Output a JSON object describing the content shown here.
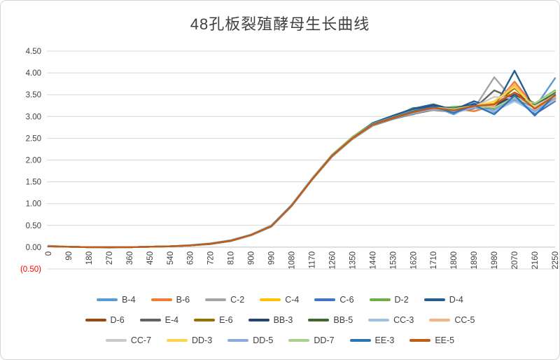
{
  "title": "48孔板裂殖酵母生长曲线",
  "axis": {
    "y_tick_labels": [
      "4.50",
      "4.00",
      "3.50",
      "3.00",
      "2.50",
      "2.00",
      "1.50",
      "1.00",
      "0.50",
      "0.00",
      "(0.50)"
    ],
    "y_tick_values": [
      4.5,
      4.0,
      3.5,
      3.0,
      2.5,
      2.0,
      1.5,
      1.0,
      0.5,
      0.0,
      -0.5
    ],
    "negative_tick_color": "#FF0000",
    "tick_label_color": "#404040",
    "gridline_color": "#D9D9D9",
    "zero_axis_color": "#BFBFBF"
  },
  "chart_data": {
    "type": "line",
    "title": "48孔板裂殖酵母生长曲线",
    "xlabel": "",
    "ylabel": "",
    "ylim": [
      -0.5,
      4.5
    ],
    "grid": true,
    "legend_position": "bottom",
    "x": [
      0,
      90,
      180,
      270,
      360,
      450,
      540,
      630,
      720,
      810,
      900,
      990,
      1080,
      1170,
      1260,
      1350,
      1440,
      1530,
      1620,
      1710,
      1800,
      1890,
      1980,
      2070,
      2160,
      2250
    ],
    "x_tick_labels": [
      "0",
      "90",
      "180",
      "270",
      "360",
      "450",
      "540",
      "630",
      "720",
      "810",
      "900",
      "990",
      "1080",
      "1170",
      "1260",
      "1350",
      "1440",
      "1530",
      "1620",
      "1710",
      "1800",
      "1890",
      "1980",
      "2070",
      "2160",
      "2250"
    ],
    "series": [
      {
        "name": "B-4",
        "color": "#5B9BD5",
        "values": [
          0.03,
          0.01,
          0.0,
          0.0,
          0.0,
          0.01,
          0.02,
          0.04,
          0.08,
          0.16,
          0.29,
          0.5,
          0.97,
          1.57,
          2.12,
          2.52,
          2.82,
          2.98,
          3.05,
          3.22,
          3.05,
          3.28,
          3.1,
          3.42,
          3.2,
          3.88
        ]
      },
      {
        "name": "B-6",
        "color": "#ED7D31",
        "values": [
          0.02,
          0.01,
          0.0,
          0.0,
          0.0,
          0.01,
          0.02,
          0.04,
          0.08,
          0.15,
          0.28,
          0.48,
          0.95,
          1.55,
          2.1,
          2.5,
          2.83,
          2.96,
          3.12,
          3.15,
          3.18,
          3.12,
          3.25,
          3.8,
          3.22,
          3.42
        ]
      },
      {
        "name": "C-2",
        "color": "#A5A5A5",
        "values": [
          0.02,
          0.01,
          0.0,
          0.0,
          0.0,
          0.01,
          0.02,
          0.04,
          0.08,
          0.15,
          0.27,
          0.47,
          0.94,
          1.54,
          2.09,
          2.49,
          2.81,
          2.97,
          3.1,
          3.2,
          3.15,
          3.18,
          3.9,
          3.35,
          3.28,
          3.5
        ]
      },
      {
        "name": "C-4",
        "color": "#FFC000",
        "values": [
          0.02,
          0.01,
          0.0,
          0.0,
          0.0,
          0.01,
          0.02,
          0.04,
          0.08,
          0.15,
          0.28,
          0.48,
          0.96,
          1.56,
          2.11,
          2.51,
          2.8,
          2.95,
          3.08,
          3.16,
          3.2,
          3.22,
          3.3,
          3.7,
          3.18,
          3.4
        ]
      },
      {
        "name": "C-6",
        "color": "#4472C4",
        "values": [
          0.02,
          0.01,
          0.0,
          0.0,
          0.0,
          0.01,
          0.02,
          0.04,
          0.08,
          0.15,
          0.28,
          0.49,
          0.96,
          1.55,
          2.1,
          2.52,
          2.84,
          3.0,
          3.15,
          3.25,
          3.1,
          3.3,
          3.15,
          3.45,
          3.05,
          3.35
        ]
      },
      {
        "name": "D-2",
        "color": "#70AD47",
        "values": [
          0.02,
          0.01,
          0.0,
          0.0,
          0.0,
          0.01,
          0.02,
          0.04,
          0.08,
          0.15,
          0.28,
          0.48,
          0.95,
          1.56,
          2.12,
          2.53,
          2.85,
          2.98,
          3.2,
          3.18,
          3.22,
          3.25,
          3.2,
          3.4,
          3.3,
          3.6
        ]
      },
      {
        "name": "D-4",
        "color": "#255E91",
        "values": [
          0.02,
          0.01,
          0.0,
          0.0,
          0.0,
          0.01,
          0.02,
          0.04,
          0.08,
          0.15,
          0.28,
          0.48,
          0.95,
          1.55,
          2.1,
          2.5,
          2.85,
          3.02,
          3.18,
          3.28,
          3.15,
          3.35,
          3.2,
          4.05,
          3.15,
          3.4
        ]
      },
      {
        "name": "D-6",
        "color": "#9E480E",
        "values": [
          0.02,
          0.01,
          0.0,
          0.0,
          0.0,
          0.01,
          0.02,
          0.04,
          0.08,
          0.15,
          0.28,
          0.48,
          0.95,
          1.55,
          2.1,
          2.5,
          2.8,
          2.95,
          3.1,
          3.2,
          3.15,
          3.22,
          3.25,
          3.55,
          3.3,
          3.45
        ]
      },
      {
        "name": "E-4",
        "color": "#636363",
        "values": [
          0.02,
          0.01,
          0.0,
          -0.01,
          0.0,
          0.01,
          0.02,
          0.04,
          0.07,
          0.14,
          0.27,
          0.47,
          0.94,
          1.54,
          2.08,
          2.48,
          2.79,
          2.94,
          3.06,
          3.15,
          3.1,
          3.18,
          3.6,
          3.4,
          3.25,
          3.42
        ]
      },
      {
        "name": "E-6",
        "color": "#997300",
        "values": [
          0.02,
          0.01,
          0.0,
          0.0,
          0.0,
          0.01,
          0.02,
          0.04,
          0.08,
          0.15,
          0.28,
          0.48,
          0.95,
          1.55,
          2.1,
          2.5,
          2.81,
          2.96,
          3.09,
          3.17,
          3.13,
          3.21,
          3.28,
          3.65,
          3.22,
          3.44
        ]
      },
      {
        "name": "BB-3",
        "color": "#264478",
        "values": [
          0.02,
          0.01,
          0.0,
          0.0,
          0.0,
          0.01,
          0.02,
          0.04,
          0.08,
          0.15,
          0.28,
          0.48,
          0.96,
          1.56,
          2.11,
          2.51,
          2.83,
          2.99,
          3.14,
          3.24,
          3.18,
          3.28,
          3.22,
          3.5,
          3.28,
          3.46
        ]
      },
      {
        "name": "BB-5",
        "color": "#43682B",
        "values": [
          0.02,
          0.01,
          0.0,
          0.0,
          0.0,
          0.01,
          0.02,
          0.04,
          0.08,
          0.15,
          0.28,
          0.48,
          0.95,
          1.55,
          2.1,
          2.5,
          2.82,
          2.97,
          3.12,
          3.2,
          3.16,
          3.24,
          3.18,
          3.38,
          3.26,
          3.55
        ]
      },
      {
        "name": "CC-3",
        "color": "#9CC2E5",
        "values": [
          0.03,
          0.01,
          0.0,
          0.0,
          0.0,
          0.01,
          0.02,
          0.05,
          0.09,
          0.16,
          0.29,
          0.49,
          0.96,
          1.56,
          2.11,
          2.51,
          2.81,
          2.96,
          3.07,
          3.18,
          3.08,
          3.2,
          3.12,
          3.35,
          3.1,
          3.38
        ]
      },
      {
        "name": "CC-5",
        "color": "#F4B183",
        "values": [
          0.02,
          0.01,
          0.0,
          0.0,
          0.0,
          0.01,
          0.02,
          0.04,
          0.08,
          0.15,
          0.28,
          0.48,
          0.95,
          1.55,
          2.1,
          2.5,
          2.8,
          2.95,
          3.08,
          3.16,
          3.12,
          3.2,
          3.24,
          3.75,
          3.15,
          3.4
        ]
      },
      {
        "name": "CC-7",
        "color": "#C9C9C9",
        "values": [
          0.02,
          0.01,
          0.0,
          0.0,
          0.0,
          0.01,
          0.02,
          0.04,
          0.08,
          0.15,
          0.27,
          0.47,
          0.94,
          1.54,
          2.09,
          2.49,
          2.8,
          2.96,
          3.1,
          3.19,
          3.14,
          3.22,
          3.45,
          3.42,
          3.24,
          3.48
        ]
      },
      {
        "name": "DD-3",
        "color": "#FFD34D",
        "values": [
          0.02,
          0.01,
          0.0,
          0.0,
          0.0,
          0.01,
          0.02,
          0.04,
          0.08,
          0.15,
          0.28,
          0.48,
          0.95,
          1.55,
          2.1,
          2.5,
          2.81,
          2.97,
          3.11,
          3.2,
          3.15,
          3.23,
          3.35,
          3.68,
          3.2,
          3.45
        ]
      },
      {
        "name": "DD-5",
        "color": "#8EAADB",
        "values": [
          0.02,
          0.01,
          0.0,
          0.0,
          0.0,
          0.01,
          0.02,
          0.04,
          0.08,
          0.15,
          0.28,
          0.48,
          0.95,
          1.55,
          2.1,
          2.5,
          2.8,
          2.95,
          3.08,
          3.17,
          3.12,
          3.2,
          3.15,
          3.4,
          3.12,
          3.42
        ]
      },
      {
        "name": "DD-7",
        "color": "#A9D18E",
        "values": [
          0.02,
          0.01,
          0.0,
          0.0,
          0.0,
          0.01,
          0.02,
          0.04,
          0.08,
          0.15,
          0.28,
          0.48,
          0.95,
          1.56,
          2.11,
          2.52,
          2.83,
          2.98,
          3.13,
          3.21,
          3.17,
          3.25,
          3.2,
          3.44,
          3.3,
          3.58
        ]
      },
      {
        "name": "EE-3",
        "color": "#2E75B6",
        "values": [
          0.02,
          0.01,
          0.0,
          0.0,
          0.0,
          0.01,
          0.02,
          0.04,
          0.08,
          0.15,
          0.28,
          0.48,
          0.95,
          1.55,
          2.1,
          2.5,
          2.82,
          2.97,
          3.12,
          3.22,
          3.08,
          3.26,
          3.05,
          3.48,
          3.02,
          3.5
        ]
      },
      {
        "name": "EE-5",
        "color": "#C55A11",
        "values": [
          0.02,
          0.01,
          0.0,
          0.0,
          0.0,
          0.01,
          0.02,
          0.04,
          0.08,
          0.15,
          0.28,
          0.48,
          0.95,
          1.55,
          2.1,
          2.5,
          2.81,
          2.96,
          3.1,
          3.2,
          3.14,
          3.24,
          3.28,
          3.55,
          3.18,
          3.48
        ]
      }
    ],
    "legend_rows": [
      7,
      7,
      6
    ]
  }
}
